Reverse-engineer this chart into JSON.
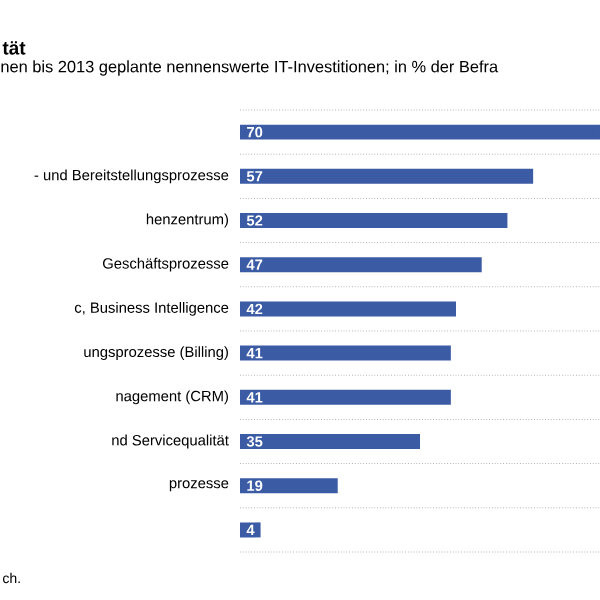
{
  "chart_data": {
    "type": "bar",
    "orientation": "horizontal",
    "title": "tät",
    "subtitle": "nen bis 2013 geplante nennenswerte IT-Investitionen; in % der Befra",
    "categories": [
      null,
      "- und Bereitstellungsprozesse",
      "henzentrum)",
      "Geschäftsprozesse",
      "c, Business Intelligence",
      "ungsprozesse (Billing)",
      "nagement (CRM)",
      "nd Servicequalität",
      "prozesse",
      null
    ],
    "values": [
      70,
      57,
      52,
      47,
      42,
      41,
      41,
      35,
      19,
      4
    ],
    "color": "#3b5ba5",
    "data_labels": true,
    "grid": "y",
    "annotations": [
      "ch."
    ]
  }
}
